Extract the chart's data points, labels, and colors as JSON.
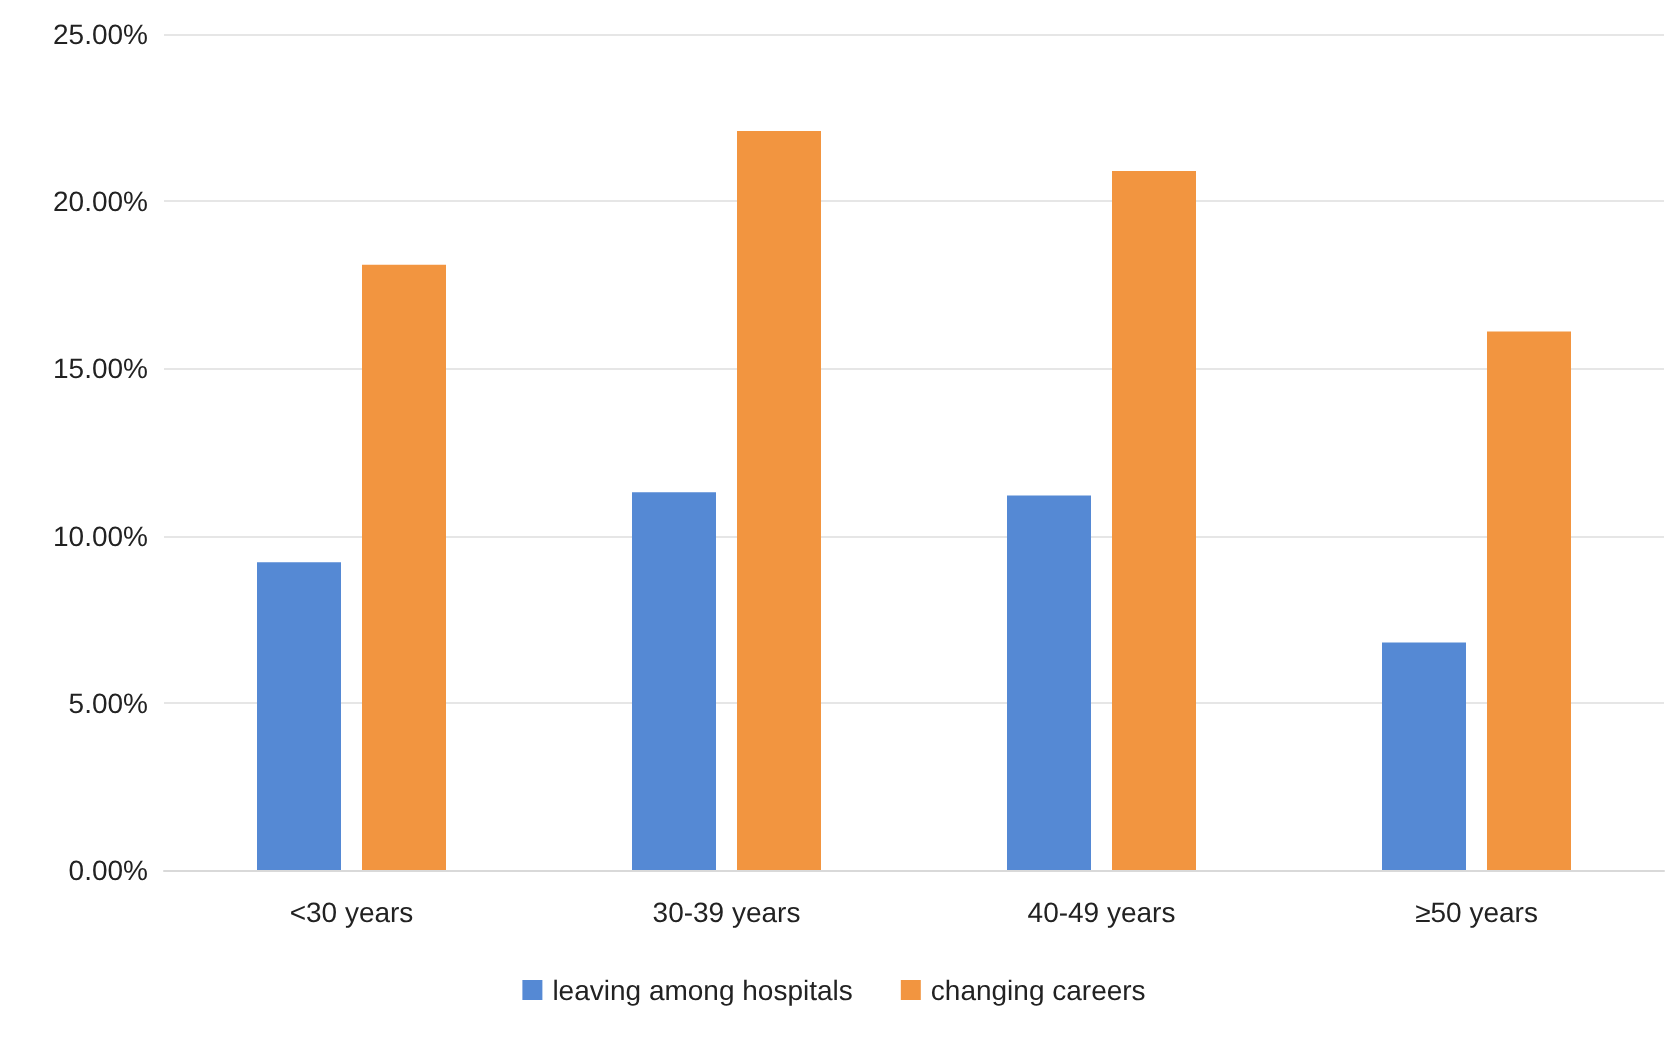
{
  "chart_data": {
    "type": "bar",
    "categories": [
      "<30 years",
      "30-39 years",
      "40-49 years",
      "≥50 years"
    ],
    "series": [
      {
        "name": "leaving among hospitals",
        "color": "#5589d4",
        "values": [
          9.2,
          11.3,
          11.2,
          6.8
        ]
      },
      {
        "name": "changing careers",
        "color": "#f29540",
        "values": [
          18.1,
          22.1,
          20.9,
          16.1
        ]
      }
    ],
    "ylim": [
      0,
      25
    ],
    "yticks": [
      {
        "value": 0,
        "label": "0.00%"
      },
      {
        "value": 5,
        "label": "5.00%"
      },
      {
        "value": 10,
        "label": "10.00%"
      },
      {
        "value": 15,
        "label": "15.00%"
      },
      {
        "value": 20,
        "label": "20.00%"
      },
      {
        "value": 25,
        "label": "25.00%"
      }
    ],
    "grid": "y",
    "legend": "bottom"
  }
}
